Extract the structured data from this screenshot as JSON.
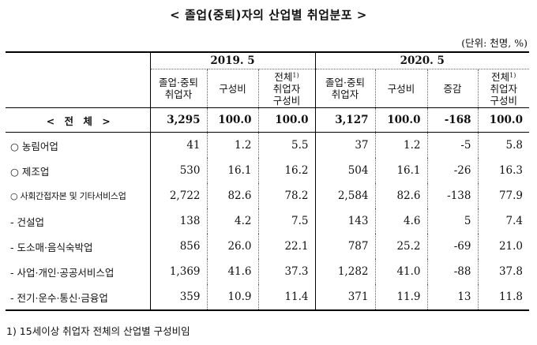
{
  "title": "< 졸업(중퇴)자의 산업별 취업분포 >",
  "unit": "(단위: 천명, %)",
  "periods": [
    "2019. 5",
    "2020. 5"
  ],
  "headers": {
    "h2019": [
      "졸업·중퇴\n취업자",
      "구성비",
      "전체1)\n취업자\n구성비"
    ],
    "h2020": [
      "졸업·중퇴\n취업자",
      "구성비",
      "증감",
      "전체1)\n취업자\n구성비"
    ]
  },
  "rows": [
    {
      "label": "< 전   체 >",
      "values": [
        "3,295",
        "100.0",
        "100.0",
        "3,127",
        "100.0",
        "-168",
        "100.0"
      ]
    },
    {
      "label": "○ 농림어업",
      "values": [
        "41",
        "1.2",
        "5.5",
        "37",
        "1.2",
        "-5",
        "5.8"
      ]
    },
    {
      "label": "○ 제조업",
      "values": [
        "530",
        "16.1",
        "16.2",
        "504",
        "16.1",
        "-26",
        "16.3"
      ]
    },
    {
      "label": "○ 사회간접자본 및 기타서비스업",
      "values": [
        "2,722",
        "82.6",
        "78.2",
        "2,584",
        "82.6",
        "-138",
        "77.9"
      ]
    },
    {
      "label": " - 건설업",
      "values": [
        "138",
        "4.2",
        "7.5",
        "143",
        "4.6",
        "5",
        "7.4"
      ]
    },
    {
      "label": " - 도소매·음식숙박업",
      "values": [
        "856",
        "26.0",
        "22.1",
        "787",
        "25.2",
        "-69",
        "21.0"
      ]
    },
    {
      "label": " - 사업·개인·공공서비스업",
      "values": [
        "1,369",
        "41.6",
        "37.3",
        "1,282",
        "41.0",
        "-88",
        "37.8"
      ]
    },
    {
      "label": " - 전기·운수·통신·금융업",
      "values": [
        "359",
        "10.9",
        "11.4",
        "371",
        "11.9",
        "13",
        "11.8"
      ]
    }
  ],
  "footnote": "1) 15세이상 취업자 전체의 산업별 구성비임"
}
